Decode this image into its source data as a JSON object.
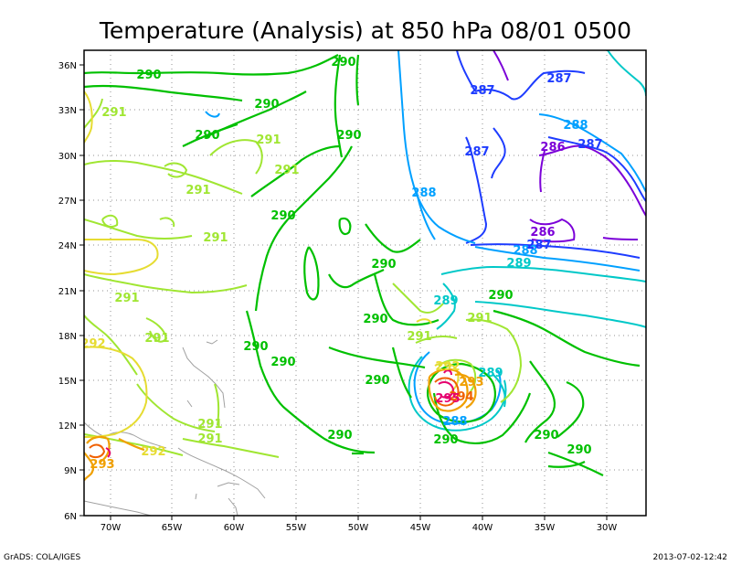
{
  "title": "Temperature (Analysis) at 850 hPa 08/01 0500",
  "footer": {
    "left": "GrADS: COLA/IGES",
    "right": "2013-07-02-12:42"
  },
  "axes": {
    "x_ticks": [
      "70W",
      "65W",
      "60W",
      "55W",
      "50W",
      "45W",
      "40W",
      "35W",
      "30W"
    ],
    "y_ticks": [
      "36N",
      "33N",
      "30N",
      "27N",
      "24N",
      "21N",
      "18N",
      "15N",
      "12N",
      "9N",
      "6N"
    ]
  },
  "colors": {
    "c286": "#7b00d8",
    "c287": "#1e3cff",
    "c288": "#00a0ff",
    "c289": "#00c8c8",
    "c290": "#00c000",
    "c291": "#a0e632",
    "c292": "#e6dc32",
    "c293": "#f0a000",
    "c294": "#f06000",
    "c295": "#e6006e",
    "coast": "#a0a0a0",
    "grid": "#909090"
  },
  "contour_labels": [
    {
      "text": "290",
      "level": "290"
    },
    {
      "text": "290",
      "level": "290"
    },
    {
      "text": "290",
      "level": "290"
    },
    {
      "text": "290",
      "level": "290"
    },
    {
      "text": "290",
      "level": "290"
    },
    {
      "text": "290",
      "level": "290"
    },
    {
      "text": "290",
      "level": "290"
    },
    {
      "text": "290",
      "level": "290"
    },
    {
      "text": "290",
      "level": "290"
    },
    {
      "text": "290",
      "level": "290"
    },
    {
      "text": "290",
      "level": "290"
    },
    {
      "text": "290",
      "level": "290"
    },
    {
      "text": "290",
      "level": "290"
    },
    {
      "text": "290",
      "level": "290"
    },
    {
      "text": "290",
      "level": "290"
    },
    {
      "text": "290",
      "level": "290"
    },
    {
      "text": "291",
      "level": "291"
    },
    {
      "text": "291",
      "level": "291"
    },
    {
      "text": "291",
      "level": "291"
    },
    {
      "text": "291",
      "level": "291"
    },
    {
      "text": "291",
      "level": "291"
    },
    {
      "text": "291",
      "level": "291"
    },
    {
      "text": "291",
      "level": "291"
    },
    {
      "text": "291",
      "level": "291"
    },
    {
      "text": "291",
      "level": "291"
    },
    {
      "text": "291",
      "level": "291"
    },
    {
      "text": "291",
      "level": "291"
    },
    {
      "text": "292",
      "level": "292"
    },
    {
      "text": "292",
      "level": "292"
    },
    {
      "text": "292",
      "level": "292"
    },
    {
      "text": "293",
      "level": "293"
    },
    {
      "text": "293",
      "level": "293"
    },
    {
      "text": "294",
      "level": "294"
    },
    {
      "text": "295",
      "level": "295"
    },
    {
      "text": "289",
      "level": "289"
    },
    {
      "text": "289",
      "level": "289"
    },
    {
      "text": "289",
      "level": "289"
    },
    {
      "text": "288",
      "level": "288"
    },
    {
      "text": "288",
      "level": "288"
    },
    {
      "text": "288",
      "level": "288"
    },
    {
      "text": "288",
      "level": "288"
    },
    {
      "text": "287",
      "level": "287"
    },
    {
      "text": "287",
      "level": "287"
    },
    {
      "text": "287",
      "level": "287"
    },
    {
      "text": "287",
      "level": "287"
    },
    {
      "text": "287",
      "level": "287"
    },
    {
      "text": "286",
      "level": "286"
    },
    {
      "text": "286",
      "level": "286"
    }
  ]
}
